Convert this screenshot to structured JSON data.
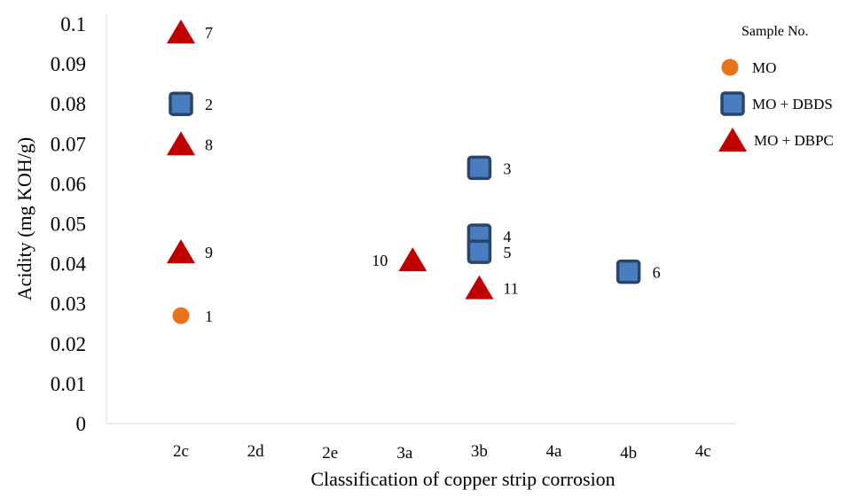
{
  "chart_data": {
    "type": "scatter",
    "title": "",
    "xlabel": "Classification of copper strip corrosion",
    "ylabel": "Acidity (mg KOH/g)",
    "categories": [
      "2c",
      "2d",
      "2e",
      "3a",
      "3b",
      "4a",
      "4b",
      "4c"
    ],
    "ylim": [
      0,
      0.1
    ],
    "yticks": [
      "0",
      "0.01",
      "0.02",
      "0.03",
      "0.04",
      "0.05",
      "0.06",
      "0.07",
      "0.08",
      "0.09",
      "0.1"
    ],
    "grid": false,
    "legend": {
      "title": "Sample No.",
      "position": "right"
    },
    "series": [
      {
        "name": "MO",
        "marker": "circle",
        "color": "#E8731A",
        "points": [
          {
            "x": "2c",
            "y": 0.027,
            "label": "1"
          }
        ]
      },
      {
        "name": "MO + DBDS",
        "marker": "square",
        "color": "#4A7DC0",
        "points": [
          {
            "x": "2c",
            "y": 0.08,
            "label": "2"
          },
          {
            "x": "3b",
            "y": 0.064,
            "label": "3"
          },
          {
            "x": "3b",
            "y": 0.047,
            "label": "4"
          },
          {
            "x": "3b",
            "y": 0.043,
            "label": "5"
          },
          {
            "x": "4b",
            "y": 0.038,
            "label": "6"
          }
        ]
      },
      {
        "name": "MO + DBPC",
        "marker": "triangle",
        "color": "#C00000",
        "points": [
          {
            "x": "2c",
            "y": 0.098,
            "label": "7"
          },
          {
            "x": "2c",
            "y": 0.07,
            "label": "8"
          },
          {
            "x": "2c",
            "y": 0.043,
            "label": "9"
          },
          {
            "x": "3a",
            "y": 0.041,
            "label": "10"
          },
          {
            "x": "3b",
            "y": 0.034,
            "label": "11"
          }
        ]
      }
    ]
  }
}
